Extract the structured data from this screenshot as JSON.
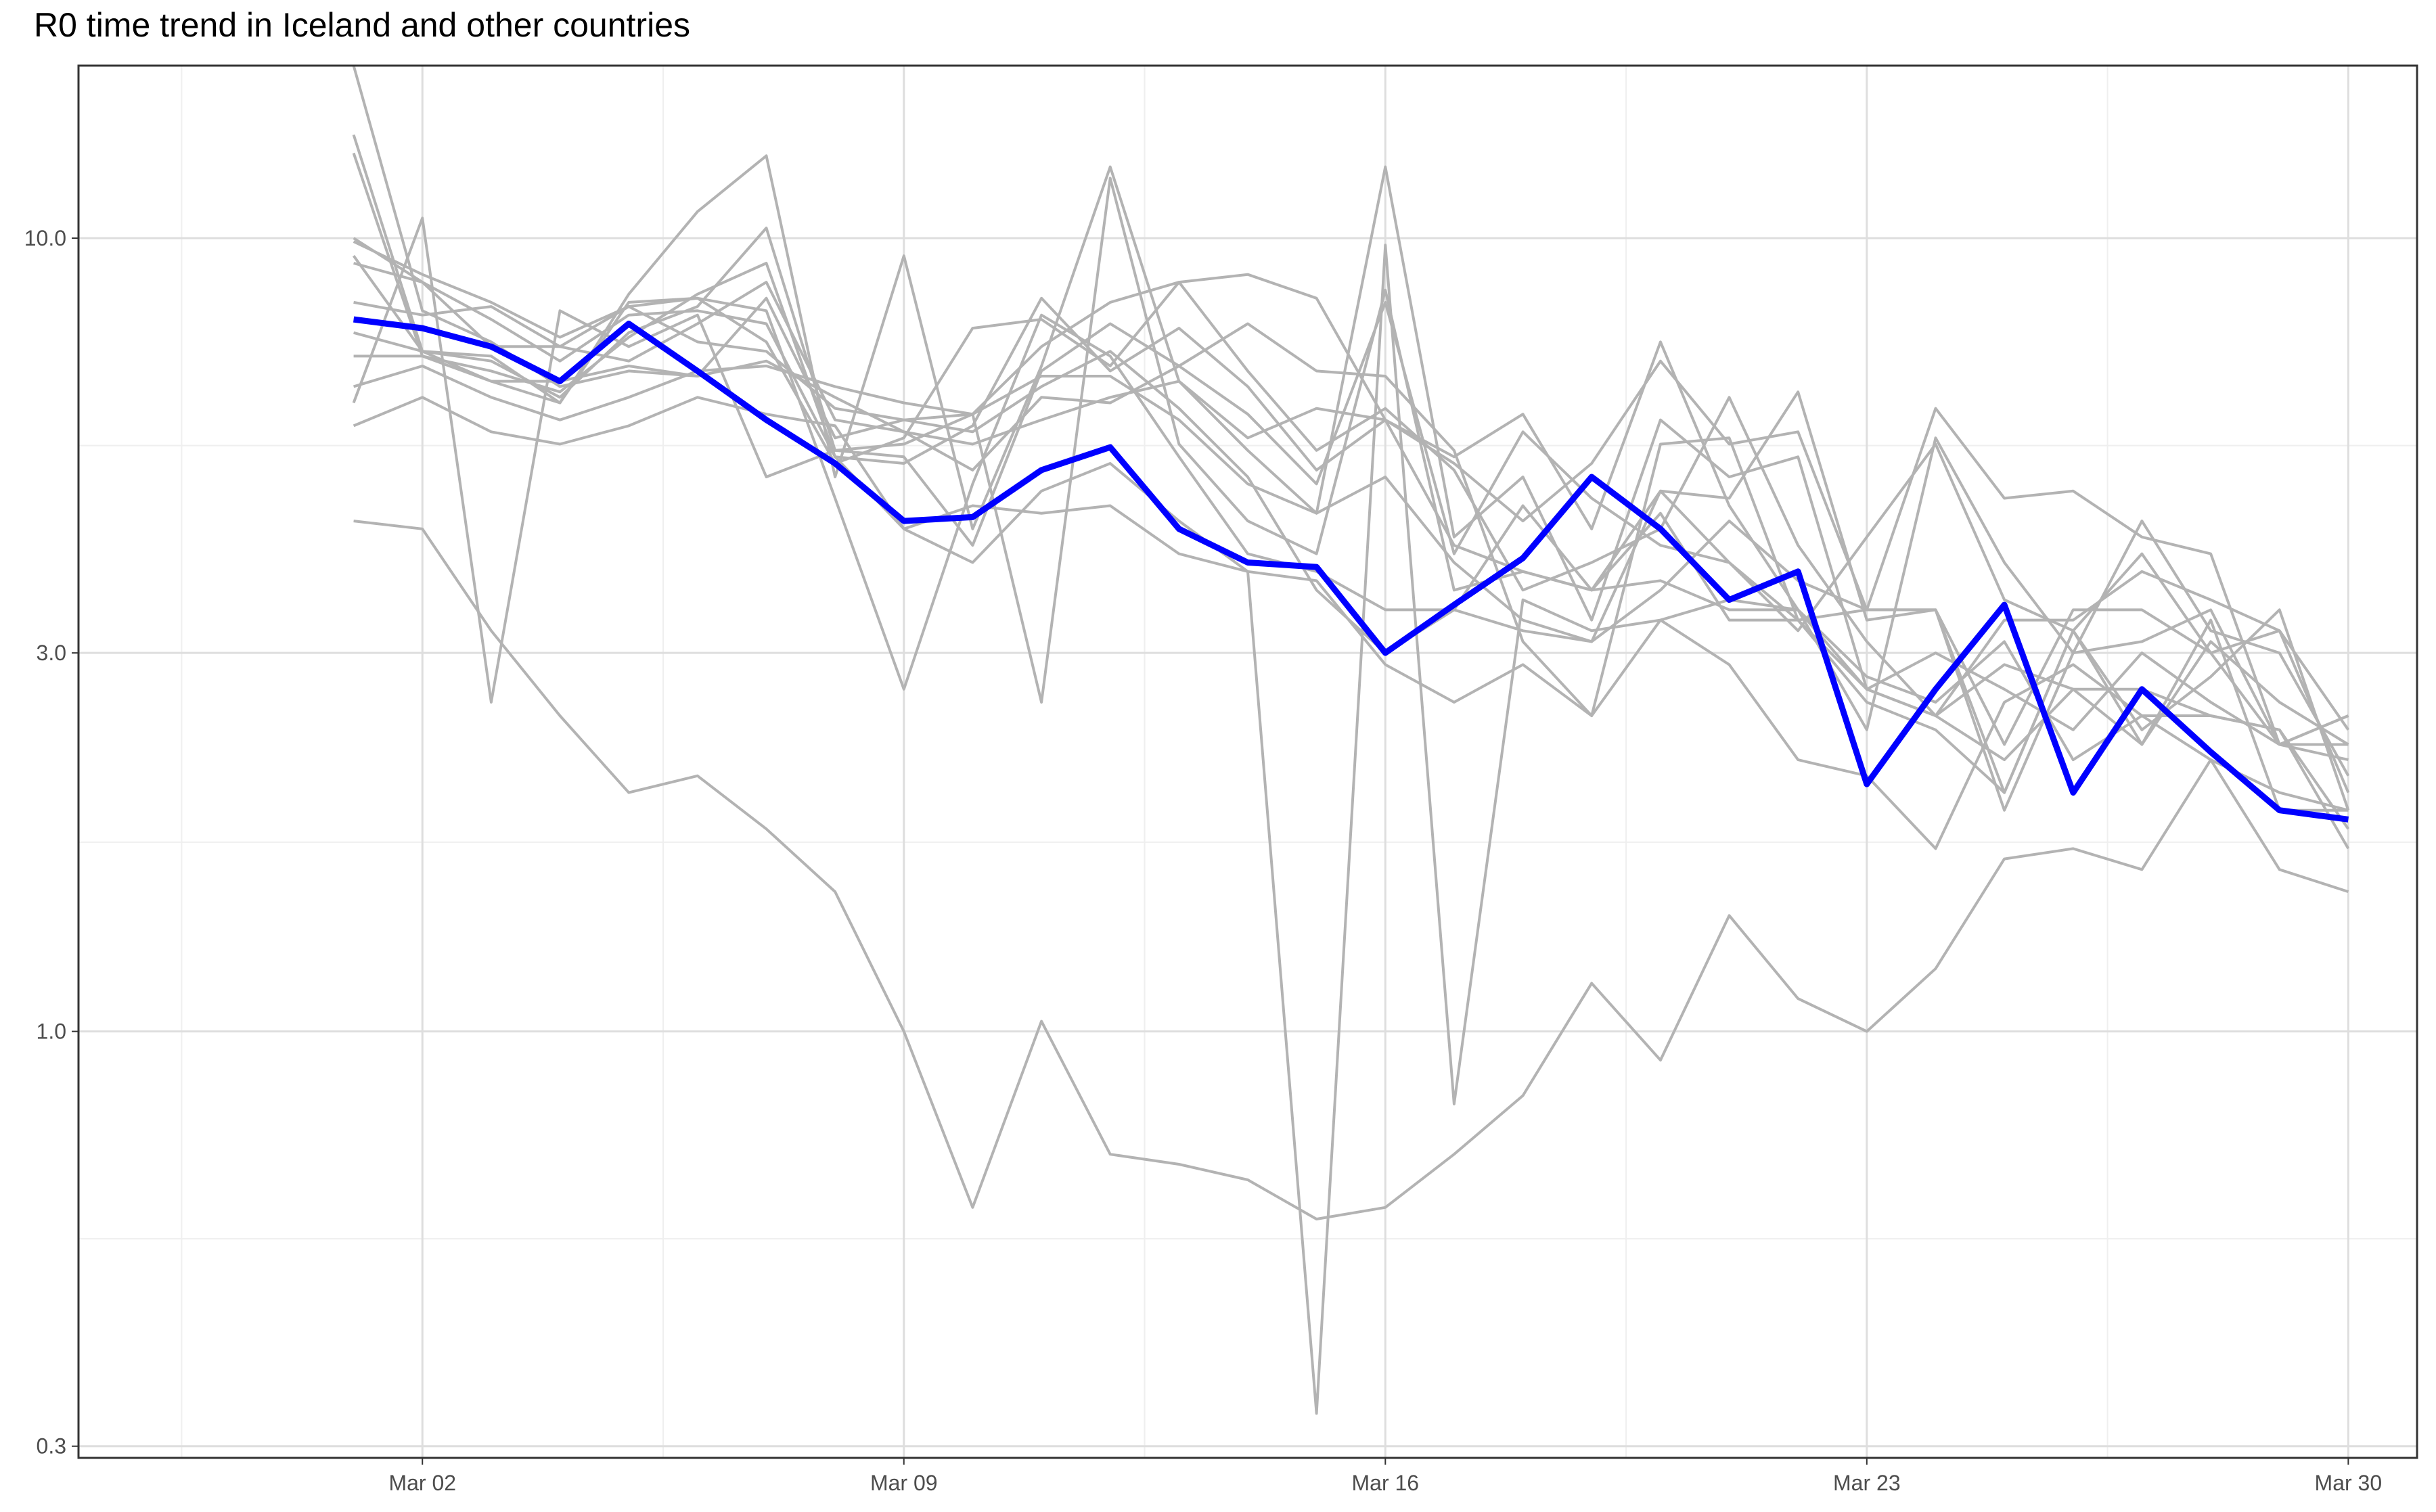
{
  "chart_data": {
    "type": "line",
    "title": "R0 time trend in Iceland and other countries",
    "xlabel": "",
    "ylabel": "",
    "x_axis": {
      "type": "date",
      "range": [
        "2020-02-26",
        "2020-03-31"
      ],
      "ticks": [
        {
          "value": "2020-03-02",
          "label": "Mar 02"
        },
        {
          "value": "2020-03-09",
          "label": "Mar 09"
        },
        {
          "value": "2020-03-16",
          "label": "Mar 16"
        },
        {
          "value": "2020-03-23",
          "label": "Mar 23"
        },
        {
          "value": "2020-03-30",
          "label": "Mar 30"
        }
      ]
    },
    "y_axis": {
      "scale": "log10",
      "range": [
        0.29,
        16.5
      ],
      "ticks": [
        {
          "value": 0.3,
          "label": "0.3"
        },
        {
          "value": 1.0,
          "label": "1.0"
        },
        {
          "value": 3.0,
          "label": "3.0"
        },
        {
          "value": 10.0,
          "label": "10.0"
        }
      ]
    },
    "grid": true,
    "legend": "none",
    "x_dates": [
      "2020-03-01",
      "2020-03-02",
      "2020-03-03",
      "2020-03-04",
      "2020-03-05",
      "2020-03-06",
      "2020-03-07",
      "2020-03-08",
      "2020-03-09",
      "2020-03-10",
      "2020-03-11",
      "2020-03-12",
      "2020-03-13",
      "2020-03-14",
      "2020-03-15",
      "2020-03-16",
      "2020-03-17",
      "2020-03-18",
      "2020-03-19",
      "2020-03-20",
      "2020-03-21",
      "2020-03-22",
      "2020-03-23",
      "2020-03-24",
      "2020-03-25",
      "2020-03-26",
      "2020-03-27",
      "2020-03-28",
      "2020-03-29",
      "2020-03-30"
    ],
    "highlight_color": "#0000ff",
    "other_color": "#b3b3b3",
    "series": [
      {
        "highlight": true,
        "values": [
          7.9,
          7.7,
          7.3,
          6.6,
          7.8,
          6.8,
          5.9,
          5.2,
          4.4,
          4.45,
          5.1,
          5.45,
          4.3,
          3.9,
          3.85,
          3.0,
          3.45,
          3.95,
          5.0,
          4.3,
          3.5,
          3.8,
          2.05,
          2.7,
          3.45,
          2.0,
          2.7,
          2.25,
          1.9,
          1.85
        ]
      },
      {
        "values": [
          13.5,
          7.2,
          7.0,
          6.3,
          7.6,
          8.2,
          10.3,
          5.4,
          5.3,
          4.1,
          6.8,
          7.8,
          6.9,
          6.0,
          4.9,
          8.3,
          4.0,
          5.7,
          4.7,
          4.1,
          3.9,
          3.2,
          4.2,
          5.5,
          3.5,
          3.2,
          2.4,
          2.8,
          3.4,
          1.9
        ]
      },
      {
        "values": [
          12.8,
          7.1,
          6.8,
          6.4,
          7.5,
          8.5,
          9.3,
          5.3,
          5.2,
          5.8,
          8.4,
          6.8,
          7.7,
          6.5,
          5.1,
          5.9,
          5.2,
          4.4,
          5.2,
          7.0,
          5.5,
          5.7,
          3.4,
          3.4,
          2.3,
          3.4,
          3.4,
          3.0,
          3.2,
          2.4
        ]
      },
      {
        "values": [
          10.0,
          8.8,
          7.3,
          7.3,
          7.0,
          7.8,
          8.8,
          5.9,
          5.7,
          5.5,
          5.9,
          6.3,
          6.6,
          5.6,
          6.1,
          5.9,
          4.1,
          3.8,
          3.6,
          3.7,
          3.4,
          3.4,
          2.7,
          3.0,
          2.7,
          2.4,
          3.0,
          2.6,
          2.3,
          2.5
        ]
      },
      {
        "values": [
          9.5,
          7.2,
          6.6,
          6.2,
          8.5,
          10.8,
          12.7,
          5.0,
          9.5,
          4.3,
          6.9,
          12.3,
          6.6,
          5.4,
          4.5,
          12.3,
          4.2,
          5.0,
          3.3,
          5.9,
          5.0,
          5.3,
          2.7,
          2.5,
          2.2,
          2.7,
          2.3,
          3.1,
          2.6,
          2.3
        ]
      },
      {
        "values": [
          8.3,
          8.0,
          8.2,
          7.3,
          8.2,
          8.4,
          7.4,
          5.2,
          5.6,
          7.7,
          7.9,
          6.9,
          8.8,
          9.0,
          8.4,
          5.9,
          5.3,
          6.0,
          4.3,
          7.4,
          4.6,
          3.4,
          2.4,
          5.6,
          3.9,
          3.0,
          4.4,
          3.2,
          3.0,
          2.1
        ]
      },
      {
        "values": [
          6.2,
          10.6,
          2.6,
          8.1,
          7.3,
          8.0,
          5.0,
          5.4,
          5.5,
          6.0,
          2.6,
          11.9,
          5.5,
          4.4,
          4.0,
          8.6,
          3.6,
          3.8,
          3.6,
          4.8,
          4.7,
          6.4,
          3.3,
          3.4,
          1.9,
          3.0,
          3.1,
          3.4,
          2.3,
          2.2
        ]
      },
      {
        "values": [
          16.5,
          8.1,
          7.4,
          6.5,
          6.8,
          6.7,
          8.4,
          5.6,
          5.9,
          5.7,
          6.5,
          7.2,
          6.1,
          5.0,
          3.6,
          3.0,
          3.4,
          3.2,
          3.1,
          4.8,
          3.9,
          3.3,
          2.6,
          2.4,
          2.0,
          3.2,
          2.3,
          3.3,
          1.9,
          1.9
        ]
      },
      {
        "values": [
          7.6,
          7.2,
          7.1,
          6.2,
          8.3,
          8.4,
          8.1,
          4.7,
          2.7,
          4.9,
          8.0,
          7.1,
          5.3,
          4.0,
          3.8,
          3.4,
          3.4,
          4.6,
          3.6,
          4.5,
          3.3,
          3.3,
          3.4,
          6.1,
          4.7,
          4.8,
          4.2,
          4.0,
          2.3,
          2.5
        ]
      },
      {
        "values": [
          6.5,
          6.9,
          6.3,
          5.9,
          6.3,
          6.8,
          6.9,
          6.5,
          6.2,
          6.0,
          6.7,
          6.7,
          5.9,
          4.9,
          4.5,
          5.0,
          3.9,
          3.3,
          3.1,
          3.6,
          4.4,
          3.7,
          3.4,
          3.4,
          2.0,
          3.2,
          4.0,
          3.0,
          2.3,
          2.3
        ]
      },
      {
        "values": [
          7.1,
          7.1,
          6.6,
          6.6,
          6.9,
          6.7,
          7.0,
          6.3,
          5.7,
          5.1,
          6.3,
          6.2,
          6.9,
          7.8,
          6.8,
          6.7,
          5.4,
          3.1,
          2.5,
          5.5,
          5.6,
          3.3,
          2.7,
          2.5,
          2.9,
          2.7,
          2.7,
          2.5,
          2.4,
          1.7
        ]
      },
      {
        "values": [
          5.8,
          6.3,
          5.7,
          5.5,
          5.8,
          6.3,
          6.0,
          5.8,
          4.3,
          4.6,
          4.5,
          4.6,
          4.0,
          3.8,
          3.7,
          2.9,
          2.6,
          2.9,
          2.5,
          3.3,
          2.9,
          2.2,
          2.1,
          1.7,
          2.6,
          2.9,
          2.5,
          2.2,
          2.0,
          1.9
        ]
      },
      {
        "values": [
          4.4,
          4.3,
          3.2,
          2.5,
          2.0,
          2.1,
          1.8,
          1.5,
          1.0,
          0.6,
          1.03,
          0.7,
          0.68,
          0.65,
          0.58,
          0.6,
          0.7,
          0.83,
          1.15,
          0.92,
          1.4,
          1.1,
          1.0,
          1.2,
          1.65,
          1.7,
          1.6,
          2.2,
          1.6,
          1.5
        ]
      },
      {
        "values": [
          9.3,
          8.8,
          7.9,
          7.0,
          8.0,
          8.1,
          7.8,
          5.3,
          4.3,
          3.9,
          4.8,
          5.2,
          4.4,
          3.8,
          0.33,
          9.8,
          0.81,
          3.5,
          3.2,
          3.3,
          3.5,
          3.4,
          2.8,
          2.6,
          3.1,
          2.2,
          2.5,
          2.5,
          2.4,
          1.8
        ]
      },
      {
        "values": [
          9.9,
          9.0,
          8.3,
          7.5,
          8.2,
          7.4,
          7.2,
          6.1,
          5.9,
          6.0,
          7.3,
          8.3,
          8.8,
          6.8,
          5.4,
          6.1,
          5.1,
          3.6,
          3.9,
          4.3,
          6.3,
          4.1,
          3.1,
          2.5,
          3.3,
          3.3,
          3.8,
          3.5,
          3.2,
          2.0
        ]
      }
    ]
  }
}
